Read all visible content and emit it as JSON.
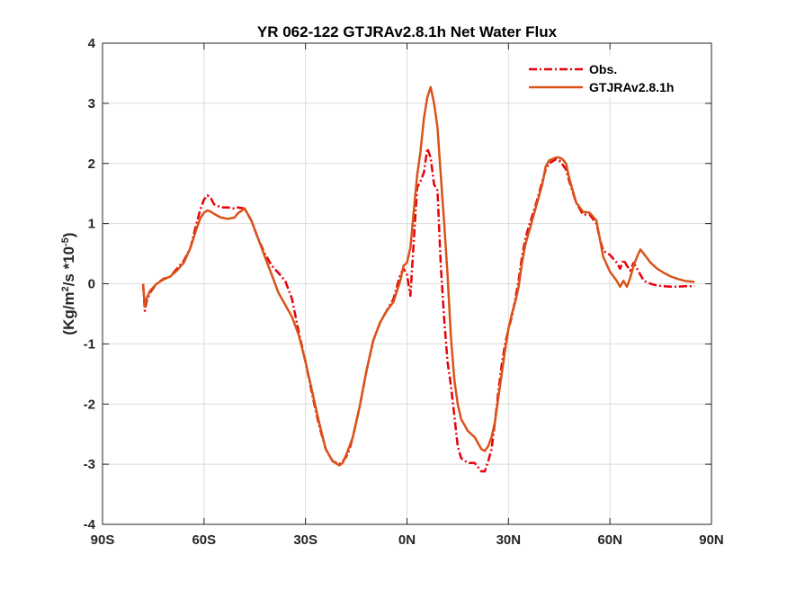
{
  "chart_data": {
    "type": "line",
    "title": "YR 062-122 GTJRAv2.8.1h  Net Water Flux",
    "xlabel": "",
    "ylabel_parts": {
      "a": "(Kg/m",
      "sup1": "2",
      "b": "/s *10",
      "sup2": "-5",
      "c": ")"
    },
    "xlim": [
      -90,
      90
    ],
    "ylim": [
      -4,
      4
    ],
    "xticks": [
      -90,
      -60,
      -30,
      0,
      30,
      60,
      90
    ],
    "xtick_labels": [
      "90S",
      "60S",
      "30S",
      "0N",
      "30N",
      "60N",
      "90N"
    ],
    "yticks": [
      -4,
      -3,
      -2,
      -1,
      0,
      1,
      2,
      3,
      4
    ],
    "ytick_labels": [
      "-4",
      "-3",
      "-2",
      "-1",
      "0",
      "1",
      "2",
      "3",
      "4"
    ],
    "grid": true,
    "legend_position": "top-right",
    "series": [
      {
        "name": "Obs.",
        "color": "#e8000b",
        "style": "dash-dot",
        "points": [
          [
            -78,
            0
          ],
          [
            -77.5,
            -0.45
          ],
          [
            -77,
            -0.3
          ],
          [
            -76,
            -0.15
          ],
          [
            -74,
            0
          ],
          [
            -72,
            0.08
          ],
          [
            -70,
            0.12
          ],
          [
            -68,
            0.25
          ],
          [
            -66,
            0.38
          ],
          [
            -64,
            0.6
          ],
          [
            -62,
            1.05
          ],
          [
            -61,
            1.25
          ],
          [
            -60,
            1.4
          ],
          [
            -59,
            1.47
          ],
          [
            -58,
            1.42
          ],
          [
            -57,
            1.32
          ],
          [
            -55,
            1.27
          ],
          [
            -53,
            1.27
          ],
          [
            -51,
            1.25
          ],
          [
            -50,
            1.27
          ],
          [
            -48,
            1.25
          ],
          [
            -46,
            1.05
          ],
          [
            -44,
            0.75
          ],
          [
            -42,
            0.5
          ],
          [
            -40,
            0.3
          ],
          [
            -38,
            0.18
          ],
          [
            -36,
            0.05
          ],
          [
            -34,
            -0.25
          ],
          [
            -32,
            -0.8
          ],
          [
            -30,
            -1.3
          ],
          [
            -28,
            -1.85
          ],
          [
            -26,
            -2.35
          ],
          [
            -24,
            -2.75
          ],
          [
            -22,
            -2.95
          ],
          [
            -20,
            -3.0
          ],
          [
            -19,
            -2.95
          ],
          [
            -18,
            -2.88
          ],
          [
            -17,
            -2.75
          ],
          [
            -16,
            -2.55
          ],
          [
            -14,
            -2.05
          ],
          [
            -12,
            -1.45
          ],
          [
            -10,
            -0.95
          ],
          [
            -8,
            -0.65
          ],
          [
            -6,
            -0.45
          ],
          [
            -4,
            -0.25
          ],
          [
            -2,
            0.15
          ],
          [
            -1,
            0.25
          ],
          [
            0,
            0.15
          ],
          [
            1,
            -0.2
          ],
          [
            2,
            0.7
          ],
          [
            3,
            1.6
          ],
          [
            4,
            1.7
          ],
          [
            5,
            1.85
          ],
          [
            6,
            2.25
          ],
          [
            7,
            2.1
          ],
          [
            8,
            1.65
          ],
          [
            9,
            1.55
          ],
          [
            10,
            0.3
          ],
          [
            11,
            -0.6
          ],
          [
            12,
            -1.3
          ],
          [
            13,
            -1.7
          ],
          [
            14,
            -2.2
          ],
          [
            15,
            -2.7
          ],
          [
            16,
            -2.9
          ],
          [
            18,
            -2.98
          ],
          [
            20,
            -2.98
          ],
          [
            22,
            -3.12
          ],
          [
            23,
            -3.12
          ],
          [
            24,
            -2.95
          ],
          [
            25,
            -2.75
          ],
          [
            26,
            -2.3
          ],
          [
            27,
            -1.8
          ],
          [
            28,
            -1.35
          ],
          [
            29,
            -1.0
          ],
          [
            30,
            -0.75
          ],
          [
            31,
            -0.55
          ],
          [
            32,
            -0.25
          ],
          [
            33,
            0.05
          ],
          [
            34,
            0.45
          ],
          [
            35,
            0.75
          ],
          [
            36,
            0.95
          ],
          [
            38,
            1.3
          ],
          [
            40,
            1.7
          ],
          [
            41,
            1.9
          ],
          [
            42,
            2.0
          ],
          [
            44,
            2.07
          ],
          [
            45,
            2.05
          ],
          [
            46,
            1.98
          ],
          [
            47,
            1.9
          ],
          [
            48,
            1.7
          ],
          [
            50,
            1.35
          ],
          [
            52,
            1.15
          ],
          [
            54,
            1.15
          ],
          [
            56,
            1.0
          ],
          [
            57,
            0.75
          ],
          [
            58,
            0.55
          ],
          [
            60,
            0.48
          ],
          [
            62,
            0.35
          ],
          [
            63,
            0.25
          ],
          [
            64,
            0.4
          ],
          [
            65,
            0.3
          ],
          [
            66,
            0.22
          ],
          [
            67,
            0.35
          ],
          [
            68,
            0.25
          ],
          [
            69,
            0.15
          ],
          [
            70,
            0.05
          ],
          [
            72,
            0.0
          ],
          [
            74,
            -0.03
          ],
          [
            76,
            -0.04
          ],
          [
            78,
            -0.05
          ],
          [
            80,
            -0.05
          ],
          [
            82,
            -0.04
          ],
          [
            85,
            -0.04
          ]
        ]
      },
      {
        "name": "GTJRAv2.8.1h",
        "color": "#d95319",
        "style": "solid",
        "points": [
          [
            -78,
            0
          ],
          [
            -77.5,
            -0.38
          ],
          [
            -77,
            -0.25
          ],
          [
            -76,
            -0.12
          ],
          [
            -74,
            0
          ],
          [
            -72,
            0.07
          ],
          [
            -70,
            0.12
          ],
          [
            -68,
            0.22
          ],
          [
            -66,
            0.35
          ],
          [
            -64,
            0.6
          ],
          [
            -62,
            0.95
          ],
          [
            -61,
            1.1
          ],
          [
            -60,
            1.18
          ],
          [
            -59,
            1.22
          ],
          [
            -58,
            1.2
          ],
          [
            -57,
            1.16
          ],
          [
            -55,
            1.1
          ],
          [
            -53,
            1.08
          ],
          [
            -51,
            1.1
          ],
          [
            -50,
            1.17
          ],
          [
            -48,
            1.25
          ],
          [
            -46,
            1.05
          ],
          [
            -44,
            0.75
          ],
          [
            -42,
            0.45
          ],
          [
            -40,
            0.15
          ],
          [
            -38,
            -0.15
          ],
          [
            -36,
            -0.35
          ],
          [
            -34,
            -0.55
          ],
          [
            -32,
            -0.85
          ],
          [
            -30,
            -1.3
          ],
          [
            -28,
            -1.8
          ],
          [
            -26,
            -2.3
          ],
          [
            -24,
            -2.75
          ],
          [
            -22,
            -2.95
          ],
          [
            -20,
            -3.02
          ],
          [
            -19,
            -2.98
          ],
          [
            -18,
            -2.85
          ],
          [
            -17,
            -2.7
          ],
          [
            -16,
            -2.55
          ],
          [
            -14,
            -2.05
          ],
          [
            -12,
            -1.45
          ],
          [
            -10,
            -0.95
          ],
          [
            -8,
            -0.65
          ],
          [
            -6,
            -0.45
          ],
          [
            -4,
            -0.3
          ],
          [
            -2,
            0.05
          ],
          [
            -1,
            0.3
          ],
          [
            0,
            0.35
          ],
          [
            1,
            0.6
          ],
          [
            2,
            1.2
          ],
          [
            3,
            1.8
          ],
          [
            4,
            2.2
          ],
          [
            5,
            2.75
          ],
          [
            6,
            3.1
          ],
          [
            7,
            3.27
          ],
          [
            8,
            3.0
          ],
          [
            9,
            2.6
          ],
          [
            10,
            1.8
          ],
          [
            11,
            1.0
          ],
          [
            12,
            0.15
          ],
          [
            13,
            -0.9
          ],
          [
            14,
            -1.6
          ],
          [
            15,
            -2.0
          ],
          [
            16,
            -2.25
          ],
          [
            18,
            -2.45
          ],
          [
            20,
            -2.55
          ],
          [
            22,
            -2.75
          ],
          [
            23,
            -2.78
          ],
          [
            24,
            -2.7
          ],
          [
            25,
            -2.55
          ],
          [
            26,
            -2.3
          ],
          [
            27,
            -1.9
          ],
          [
            28,
            -1.5
          ],
          [
            29,
            -1.1
          ],
          [
            30,
            -0.75
          ],
          [
            31,
            -0.5
          ],
          [
            32,
            -0.3
          ],
          [
            33,
            -0.05
          ],
          [
            34,
            0.35
          ],
          [
            35,
            0.65
          ],
          [
            36,
            0.85
          ],
          [
            38,
            1.25
          ],
          [
            40,
            1.65
          ],
          [
            41,
            1.95
          ],
          [
            42,
            2.05
          ],
          [
            44,
            2.1
          ],
          [
            45,
            2.1
          ],
          [
            46,
            2.07
          ],
          [
            47,
            2.0
          ],
          [
            48,
            1.75
          ],
          [
            50,
            1.35
          ],
          [
            52,
            1.2
          ],
          [
            54,
            1.18
          ],
          [
            56,
            1.05
          ],
          [
            57,
            0.75
          ],
          [
            58,
            0.45
          ],
          [
            60,
            0.2
          ],
          [
            62,
            0.05
          ],
          [
            63,
            -0.05
          ],
          [
            64,
            0.05
          ],
          [
            65,
            -0.05
          ],
          [
            66,
            0.1
          ],
          [
            67,
            0.3
          ],
          [
            68,
            0.45
          ],
          [
            69,
            0.57
          ],
          [
            70,
            0.5
          ],
          [
            72,
            0.35
          ],
          [
            74,
            0.25
          ],
          [
            76,
            0.18
          ],
          [
            78,
            0.12
          ],
          [
            80,
            0.08
          ],
          [
            82,
            0.05
          ],
          [
            85,
            0.03
          ]
        ]
      }
    ]
  }
}
